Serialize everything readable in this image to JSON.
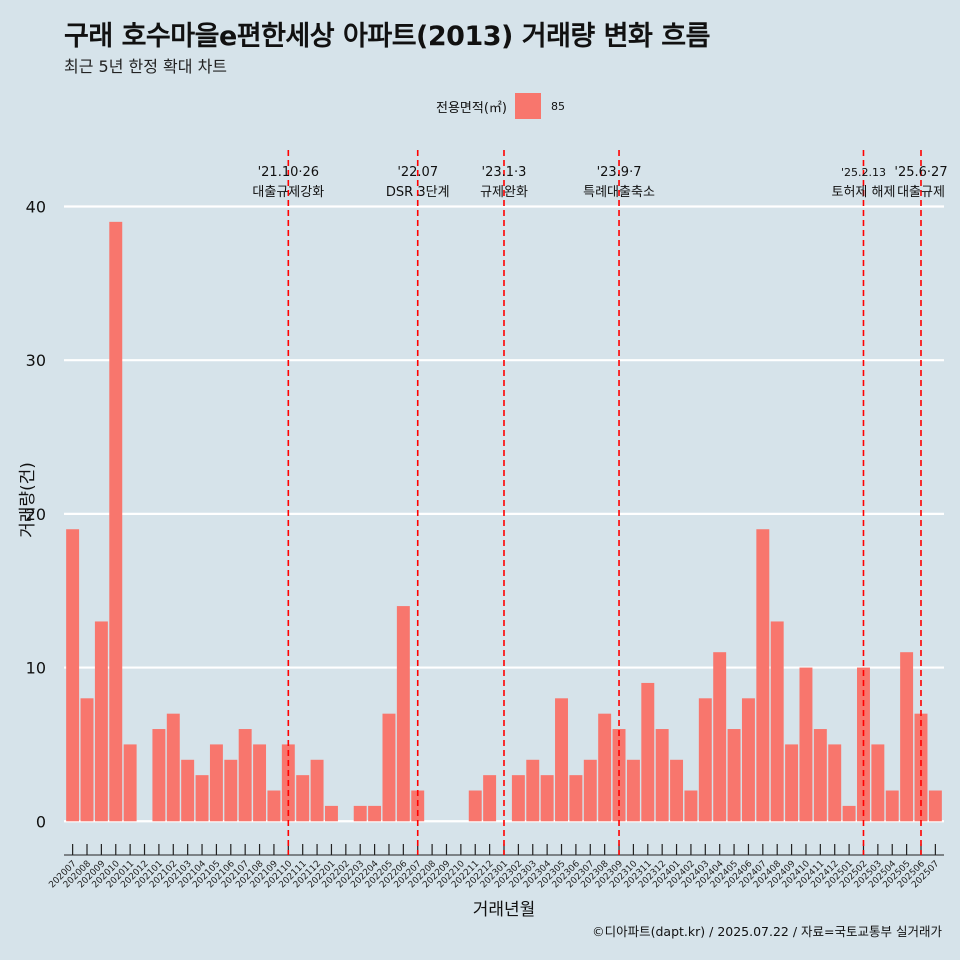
{
  "title": "구래 호수마을e편한세상 아파트(2013) 거래량 변화 흐름",
  "subtitle": "최근 5년 한정 확대 차트",
  "legend": {
    "title": "전용면적(㎡)",
    "items": [
      {
        "label": "85",
        "color": "#f8766d"
      }
    ]
  },
  "caption": "©디아파트(dapt.kr) / 2025.07.22 / 자료=국토교통부 실거래가",
  "colors": {
    "background": "#d6e3ea",
    "bar": "#f8766d",
    "grid": "#ffffff",
    "event_line": "#ff0000"
  },
  "chart_data": {
    "type": "bar",
    "xlabel": "거래년월",
    "ylabel": "거래량(건)",
    "ylim": [
      -2,
      44
    ],
    "yticks": [
      0,
      10,
      20,
      30,
      40
    ],
    "grid": "horizontal",
    "legend_placement": "top",
    "categories": [
      "202007",
      "202008",
      "202009",
      "202010",
      "202011",
      "202012",
      "202101",
      "202102",
      "202103",
      "202104",
      "202105",
      "202106",
      "202107",
      "202108",
      "202109",
      "202110",
      "202111",
      "202112",
      "202201",
      "202202",
      "202203",
      "202204",
      "202205",
      "202206",
      "202207",
      "202208",
      "202209",
      "202210",
      "202211",
      "202212",
      "202301",
      "202302",
      "202303",
      "202304",
      "202305",
      "202306",
      "202307",
      "202308",
      "202309",
      "202310",
      "202311",
      "202312",
      "202401",
      "202402",
      "202403",
      "202404",
      "202405",
      "202406",
      "202407",
      "202408",
      "202409",
      "202410",
      "202411",
      "202412",
      "202501",
      "202502",
      "202503",
      "202504",
      "202505",
      "202506",
      "202507"
    ],
    "series": [
      {
        "name": "85",
        "values": [
          19,
          8,
          13,
          39,
          5,
          0,
          6,
          7,
          4,
          3,
          5,
          4,
          6,
          5,
          2,
          5,
          3,
          4,
          1,
          0,
          1,
          1,
          7,
          14,
          2,
          0,
          0,
          0,
          2,
          3,
          0,
          3,
          4,
          3,
          8,
          3,
          4,
          7,
          6,
          4,
          9,
          6,
          4,
          2,
          8,
          11,
          6,
          8,
          19,
          13,
          5,
          10,
          6,
          5,
          1,
          10,
          5,
          2,
          11,
          7,
          2
        ]
      }
    ],
    "events": [
      {
        "x": "202110",
        "date": "'21.10·26",
        "label": "대출규제강화"
      },
      {
        "x": "202207",
        "date": "'22.07",
        "label": "DSR 3단계"
      },
      {
        "x": "202301",
        "date": "'23.1·3",
        "label": "규제완화"
      },
      {
        "x": "202309",
        "date": "'23.9·7",
        "label": "특례대출축소"
      },
      {
        "x": "202502",
        "date": "'25.2.13",
        "label": "토허제 해제"
      },
      {
        "x": "202506",
        "date": "'25.6·27",
        "label": "대출규제"
      }
    ]
  }
}
